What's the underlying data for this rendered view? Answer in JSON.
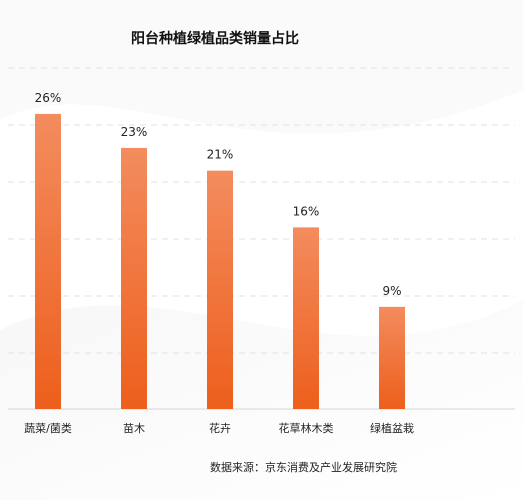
{
  "chart_data": {
    "type": "bar",
    "title": "阳台种植绿植品类销量占比",
    "categories": [
      "蔬菜/菌类",
      "苗木",
      "花卉",
      "花草林木类",
      "绿植盆栽"
    ],
    "values": [
      26,
      23,
      21,
      16,
      9
    ],
    "value_labels": [
      "26%",
      "23%",
      "21%",
      "16%",
      "9%"
    ],
    "unit": "%",
    "ylim": [
      0,
      30
    ],
    "grid": true,
    "legend": "none",
    "bar_color_top": "#f38c5e",
    "bar_color_bottom": "#ed5f1c"
  },
  "source": "数据来源：京东消费及产业发展研究院"
}
